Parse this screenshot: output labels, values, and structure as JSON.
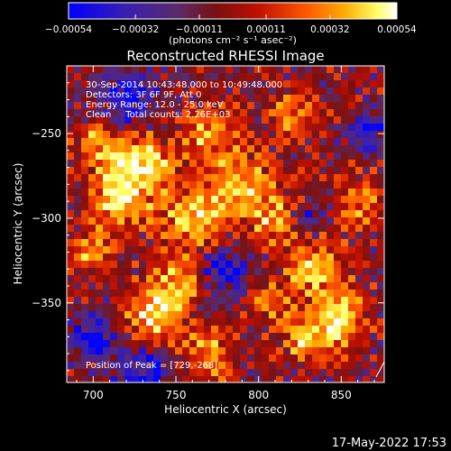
{
  "chart_data": {
    "type": "heatmap",
    "title": "Reconstructed RHESSI Image",
    "xlabel": "Heliocentric X (arcsec)",
    "ylabel": "Heliocentric Y (arcsec)",
    "xlim": [
      684,
      876
    ],
    "ylim": [
      -397,
      -210
    ],
    "x_ticks": [
      700,
      750,
      800,
      850
    ],
    "x_tick_labels": [
      "700",
      "750",
      "800",
      "850"
    ],
    "y_ticks": [
      -250,
      -300,
      -350
    ],
    "y_tick_labels": [
      "−250",
      "−300",
      "−350"
    ],
    "colorbar": {
      "min": -0.00054,
      "max": 0.00054,
      "tick_values": [
        -0.00054,
        -0.00032,
        -0.00011,
        0.00011,
        0.00032,
        0.00054
      ],
      "tick_labels": [
        "−0.00054",
        "−0.00032",
        "−0.00011",
        "0.00011",
        "0.00032",
        "0.00054"
      ],
      "unit_label": "(photons cm⁻² s⁻¹ asec⁻²)",
      "colors": [
        "#0000ff",
        "#3a1fb0",
        "#5a2a6a",
        "#7a1010",
        "#c01000",
        "#ff5500",
        "#ffaa00",
        "#ffff66",
        "#ffffff"
      ]
    },
    "annotations": [
      "30-Sep-2014 10:43:48.000 to 10:49:48.000",
      "Detectors: 3F 6F 9F, Att 0",
      "Energy Range: 12.0 - 25.0 keV",
      "Clean     Total counts: 2.26E+03"
    ],
    "peak_label": "Position of Peak = [729,-268]",
    "peak": [
      729,
      -268
    ]
  },
  "footer": {
    "timestamp": "17-May-2022 17:53"
  }
}
